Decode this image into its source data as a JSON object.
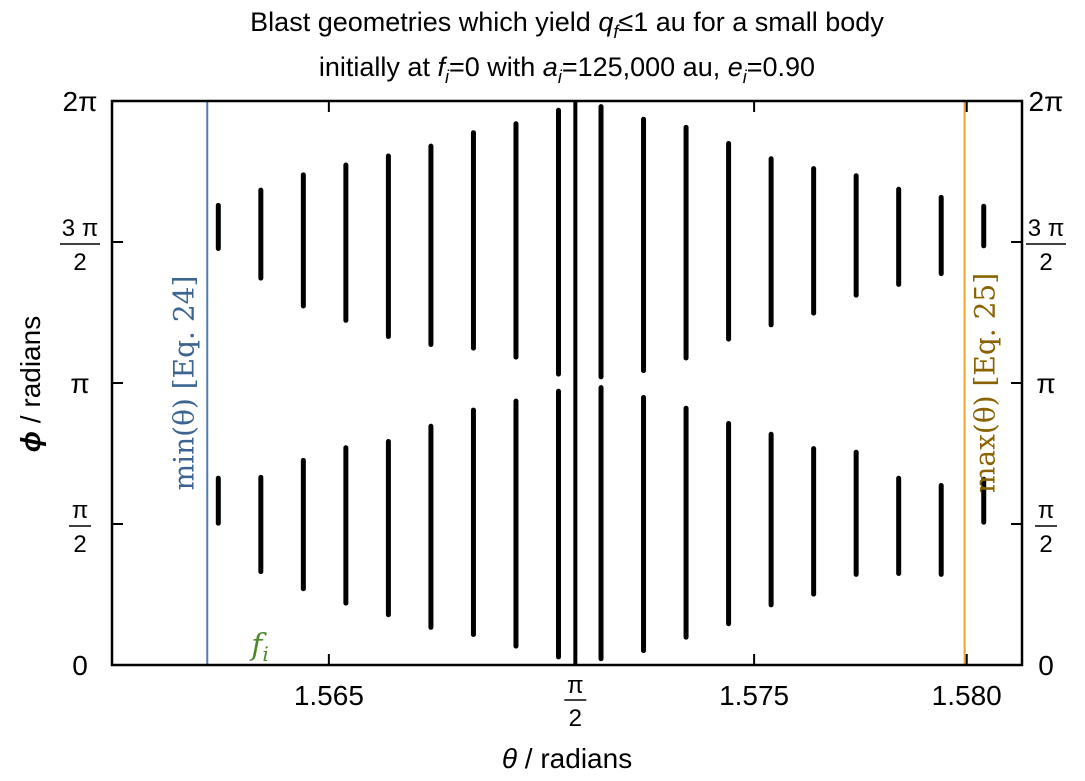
{
  "chart_data": {
    "type": "scatter",
    "title": {
      "line1": {
        "pre": "Blast geometries which yield ",
        "q": "q",
        "q_sub": "f",
        "post": "≤1 au for a small body"
      },
      "line2": {
        "pre": "initially at ",
        "f": "f",
        "f_sub": "i",
        "mid1": "=0 with ",
        "a": "a",
        "a_sub": "i",
        "mid2": "=125,000 au, ",
        "e": "e",
        "e_sub": "i",
        "post": "=0.90"
      }
    },
    "xlabel": {
      "symbol": "θ",
      "text": " / radians"
    },
    "ylabel": {
      "symbol": "ϕ",
      "text": " / radians"
    },
    "xlim": [
      1.5599,
      1.5813
    ],
    "ylim": [
      0,
      6.283185
    ],
    "x_ticks": [
      {
        "value": 1.565,
        "label": "1.565"
      },
      {
        "value": 1.570796,
        "label_num": "π",
        "label_den": "2"
      },
      {
        "value": 1.575,
        "label": "1.575"
      },
      {
        "value": 1.58,
        "label": "1.580"
      }
    ],
    "y_ticks": [
      {
        "value": 0,
        "label": "0"
      },
      {
        "value": 1.570796,
        "label_num": "π",
        "label_den": "2"
      },
      {
        "value": 3.141593,
        "label": "π"
      },
      {
        "value": 4.712389,
        "label_num": "3 π",
        "label_den": "2"
      },
      {
        "value": 6.283185,
        "label": "2π"
      }
    ],
    "vertical_lines": [
      {
        "x": 1.56214,
        "color": "#4c7fb8",
        "label": "min(θ) [Eq. 24]",
        "label_color": "#3d6491"
      },
      {
        "x": 1.570796,
        "color": "#000000"
      },
      {
        "x": 1.57995,
        "color": "#e8a52a",
        "label": "max(θ) [Eq. 25]",
        "label_color": "#8a6300"
      }
    ],
    "marker": {
      "label": "f",
      "label_sub": "i",
      "color": "#4b8a2a",
      "x": 1.56214,
      "y": 0
    },
    "segment_color": "#000000",
    "segments": [
      {
        "x": 1.5624,
        "lower": [
          1.58,
          2.08
        ],
        "upper": [
          4.64,
          5.12
        ]
      },
      {
        "x": 1.5634,
        "lower": [
          1.04,
          2.09
        ],
        "upper": [
          4.31,
          5.29
        ]
      },
      {
        "x": 1.5644,
        "lower": [
          0.85,
          2.28
        ],
        "upper": [
          4.0,
          5.46
        ]
      },
      {
        "x": 1.5654,
        "lower": [
          0.69,
          2.42
        ],
        "upper": [
          3.84,
          5.57
        ]
      },
      {
        "x": 1.5664,
        "lower": [
          0.56,
          2.49
        ],
        "upper": [
          3.66,
          5.67
        ]
      },
      {
        "x": 1.5674,
        "lower": [
          0.42,
          2.66
        ],
        "upper": [
          3.57,
          5.78
        ]
      },
      {
        "x": 1.5684,
        "lower": [
          0.34,
          2.84
        ],
        "upper": [
          3.53,
          5.93
        ]
      },
      {
        "x": 1.5694,
        "lower": [
          0.21,
          2.94
        ],
        "upper": [
          3.43,
          6.03
        ]
      },
      {
        "x": 1.5704,
        "lower": [
          0.09,
          3.05
        ],
        "upper": [
          3.24,
          6.18
        ]
      },
      {
        "x": 1.5714,
        "lower": [
          0.07,
          3.09
        ],
        "upper": [
          3.21,
          6.22
        ]
      },
      {
        "x": 1.5724,
        "lower": [
          0.16,
          2.98
        ],
        "upper": [
          3.28,
          6.08
        ]
      },
      {
        "x": 1.5734,
        "lower": [
          0.31,
          2.86
        ],
        "upper": [
          3.42,
          5.99
        ]
      },
      {
        "x": 1.5744,
        "lower": [
          0.46,
          2.69
        ],
        "upper": [
          3.63,
          5.81
        ]
      },
      {
        "x": 1.5754,
        "lower": [
          0.67,
          2.57
        ],
        "upper": [
          3.79,
          5.64
        ]
      },
      {
        "x": 1.5764,
        "lower": [
          0.79,
          2.41
        ],
        "upper": [
          3.92,
          5.53
        ]
      },
      {
        "x": 1.5774,
        "lower": [
          1.01,
          2.37
        ],
        "upper": [
          4.12,
          5.45
        ]
      },
      {
        "x": 1.5784,
        "lower": [
          1.02,
          2.08
        ],
        "upper": [
          4.24,
          5.3
        ]
      },
      {
        "x": 1.5794,
        "lower": [
          1.01,
          2.0
        ],
        "upper": [
          4.36,
          5.21
        ]
      },
      {
        "x": 1.5804,
        "lower": [
          1.59,
          2.07
        ],
        "upper": [
          4.67,
          5.11
        ]
      }
    ]
  }
}
